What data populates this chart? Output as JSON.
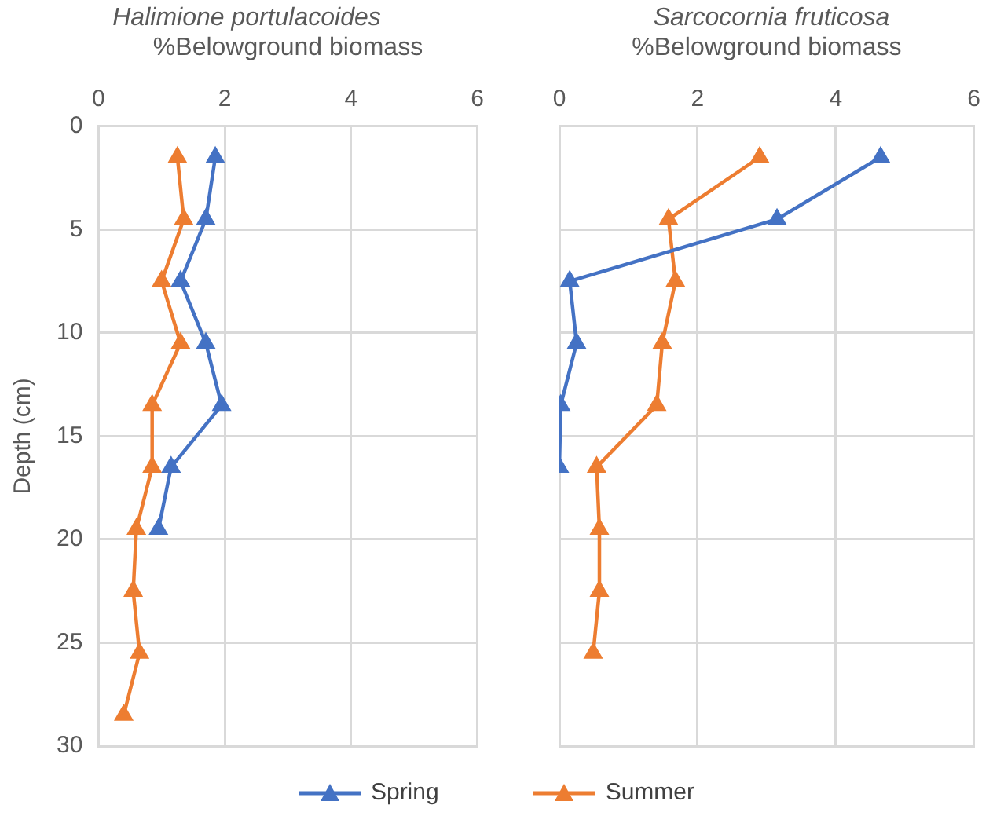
{
  "chart_data": [
    {
      "type": "line",
      "orientation": "horizontal",
      "title": "Halimione portulacoides",
      "xlabel": "%Belowground biomass",
      "ylabel": "Depth (cm)",
      "xlim": [
        0,
        6
      ],
      "xticks": [
        0,
        2,
        4,
        6
      ],
      "ylim": [
        30,
        0
      ],
      "yticks": [
        0,
        5,
        10,
        15,
        20,
        25,
        30
      ],
      "grid": true,
      "marker": "triangle",
      "legend": "bottom",
      "series": [
        {
          "name": "Spring",
          "color": "#4472c4",
          "x": [
            1.5,
            4.5,
            7.5,
            10.5,
            13.5,
            16.5,
            19.5
          ],
          "values": [
            1.85,
            1.7,
            1.3,
            1.7,
            1.95,
            1.15,
            0.95
          ]
        },
        {
          "name": "Summer",
          "color": "#ed7d31",
          "x": [
            1.5,
            4.5,
            7.5,
            10.5,
            13.5,
            16.5,
            19.5,
            22.5,
            25.5,
            28.5
          ],
          "values": [
            1.25,
            1.35,
            1.0,
            1.3,
            0.85,
            0.85,
            0.6,
            0.55,
            0.65,
            0.4
          ]
        }
      ]
    },
    {
      "type": "line",
      "orientation": "horizontal",
      "title": "Sarcocornia fruticosa",
      "xlabel": "%Belowground biomass",
      "xlim": [
        0,
        6
      ],
      "xticks": [
        0,
        2,
        4,
        6
      ],
      "ylim": [
        30,
        0
      ],
      "yticks": [
        0,
        5,
        10,
        15,
        20,
        25,
        30
      ],
      "tick_labels": "x",
      "grid": true,
      "marker": "triangle",
      "series": [
        {
          "color": "#4472c4",
          "x": [
            1.5,
            4.5,
            7.5,
            10.5,
            13.5,
            16.5
          ],
          "values": [
            4.65,
            3.15,
            0.15,
            0.25,
            0.02,
            0.0
          ]
        },
        {
          "color": "#ed7d31",
          "x": [
            1.5,
            4.5,
            7.5,
            10.5,
            13.5,
            16.5,
            19.5,
            22.5,
            25.5
          ],
          "values": [
            2.9,
            1.58,
            1.68,
            1.49,
            1.41,
            0.54,
            0.58,
            0.58,
            0.49
          ]
        }
      ]
    }
  ]
}
